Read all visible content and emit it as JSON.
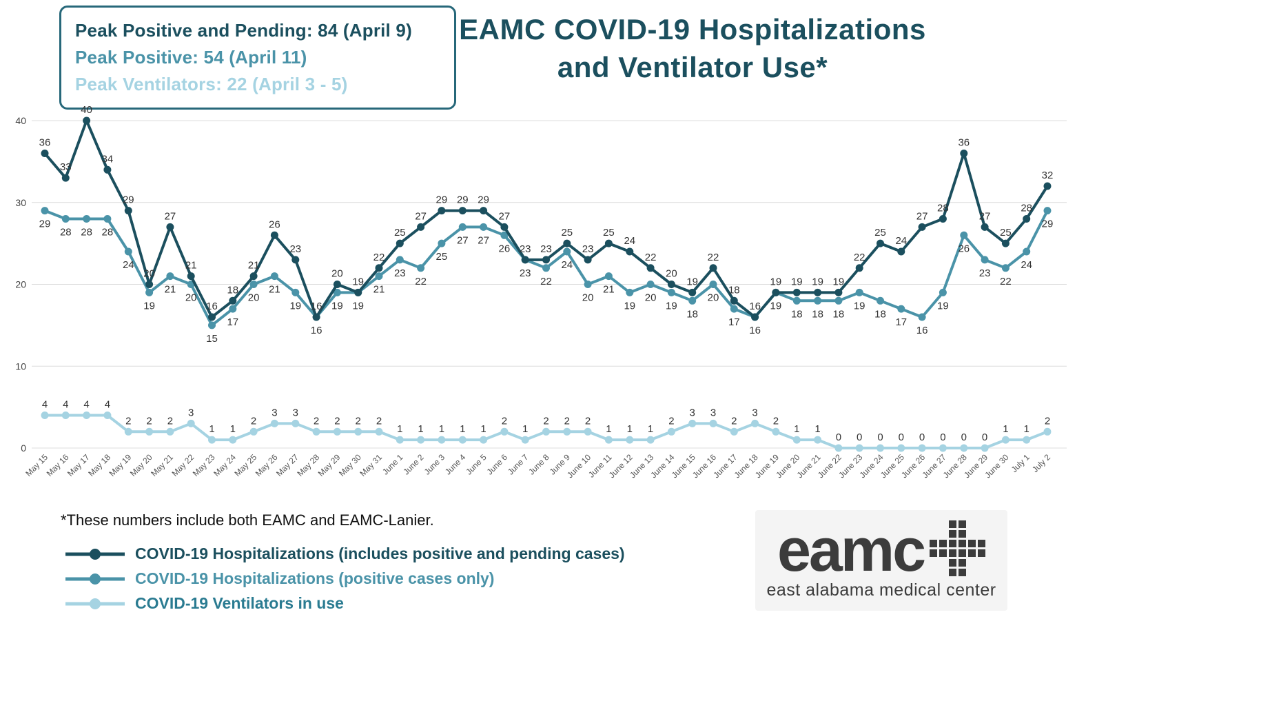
{
  "title": {
    "line1": "EAMC COVID-19 Hospitalizations",
    "line2": "and Ventilator Use*"
  },
  "peak_box": {
    "lines": [
      {
        "text": "Peak Positive and Pending: 84 (April 9)",
        "color": "#1b4f5e"
      },
      {
        "text": "Peak Positive: 54 (April 11)",
        "color": "#4a93a8"
      },
      {
        "text": "Peak Ventilators: 22 (April 3 - 5)",
        "color": "#a5d3e2"
      }
    ]
  },
  "footnote": "*These numbers include both EAMC and EAMC-Lanier.",
  "legend": [
    {
      "label": "COVID-19 Hospitalizations (includes positive and pending cases)",
      "color": "#1b4f5e",
      "text_color": "#1b4f5e"
    },
    {
      "label": "COVID-19 Hospitalizations (positive cases only)",
      "color": "#4a93a8",
      "text_color": "#4a93a8"
    },
    {
      "label": "COVID-19 Ventilators in use",
      "color": "#a5d3e2",
      "text_color": "#2a7b91"
    }
  ],
  "logo": {
    "name": "eamc",
    "tagline": "east alabama medical center"
  },
  "chart_data": {
    "type": "line",
    "title": "EAMC COVID-19 Hospitalizations and Ventilator Use*",
    "xlabel": "",
    "ylabel": "",
    "ylim": [
      0,
      40
    ],
    "yticks": [
      0,
      10,
      20,
      30,
      40
    ],
    "grid": true,
    "legend_position": "bottom-left",
    "categories": [
      "May 15",
      "May 16",
      "May 17",
      "May 18",
      "May 19",
      "May 20",
      "May 21",
      "May 22",
      "May 23",
      "May 24",
      "May 25",
      "May 26",
      "May 27",
      "May 28",
      "May 29",
      "May 30",
      "May 31",
      "June 1",
      "June 2",
      "June 3",
      "June 4",
      "June 5",
      "June 6",
      "June 7",
      "June 8",
      "June 9",
      "June 10",
      "June 11",
      "June 12",
      "June 13",
      "June 14",
      "June 15",
      "June 16",
      "June 17",
      "June 18",
      "June 19",
      "June 20",
      "June 21",
      "June 22",
      "June 23",
      "June 24",
      "June 25",
      "June 26",
      "June 27",
      "June 28",
      "June 29",
      "June 30",
      "July 1",
      "July 2"
    ],
    "series": [
      {
        "name": "COVID-19 Hospitalizations (includes positive and pending cases)",
        "color": "#1b4f5e",
        "label_position": "above",
        "values": [
          36,
          33,
          40,
          34,
          29,
          20,
          27,
          21,
          16,
          18,
          21,
          26,
          23,
          16,
          20,
          19,
          22,
          25,
          27,
          29,
          29,
          29,
          27,
          23,
          23,
          25,
          23,
          25,
          24,
          22,
          20,
          19,
          22,
          18,
          16,
          19,
          19,
          19,
          19,
          22,
          25,
          24,
          27,
          28,
          36,
          27,
          25,
          28,
          32
        ]
      },
      {
        "name": "COVID-19 Hospitalizations (positive cases only)",
        "color": "#4a93a8",
        "label_position": "below",
        "values": [
          29,
          28,
          28,
          28,
          24,
          19,
          21,
          20,
          15,
          17,
          20,
          21,
          19,
          16,
          19,
          19,
          21,
          23,
          22,
          25,
          27,
          27,
          26,
          23,
          22,
          24,
          20,
          21,
          19,
          20,
          19,
          18,
          20,
          17,
          16,
          19,
          18,
          18,
          18,
          19,
          18,
          17,
          16,
          19,
          26,
          23,
          22,
          24,
          29
        ]
      },
      {
        "name": "COVID-19 Ventilators in use",
        "color": "#a5d3e2",
        "label_position": "above",
        "values": [
          4,
          4,
          4,
          4,
          2,
          2,
          2,
          3,
          1,
          1,
          2,
          3,
          3,
          2,
          2,
          2,
          2,
          1,
          1,
          1,
          1,
          1,
          2,
          1,
          2,
          2,
          2,
          1,
          1,
          1,
          2,
          3,
          3,
          2,
          3,
          2,
          1,
          1,
          0,
          0,
          0,
          0,
          0,
          0,
          0,
          0,
          1,
          1,
          2
        ]
      }
    ]
  }
}
